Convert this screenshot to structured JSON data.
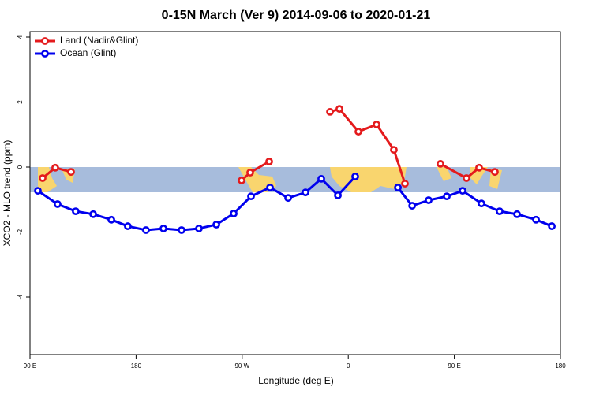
{
  "chart_data": {
    "type": "line",
    "title": "0-15N March (Ver 9)   2014-09-06 to 2020-01-21",
    "x_label": "Longitude (deg E)",
    "y_label": "XCO2 - MLO trend (ppm)",
    "xlim": [
      90,
      540
    ],
    "xticks": [
      {
        "value": 90,
        "label": "90 E"
      },
      180,
      {
        "value": 270,
        "label": "90 W"
      },
      {
        "value": 360,
        "label": "0"
      },
      {
        "value": 450,
        "label": "90 E"
      },
      {
        "value": 540,
        "label": "180"
      }
    ],
    "ylim": [
      -5.77,
      4.17
    ],
    "yticks": [
      4,
      2,
      0,
      -2,
      -4
    ],
    "legend": "top-left",
    "series": [
      {
        "name": "Land (Nadir&Glint)",
        "color": "#e41a1c",
        "x": [
          100.7,
          111.4,
          124.8,
          null,
          269.5,
          276.8,
          292.9,
          null,
          344.5,
          352.5,
          368.6,
          384.0,
          398.7,
          408.1,
          null,
          438.2,
          460.3,
          471.0,
          484.4
        ],
        "values": [
          -0.34,
          -0.02,
          -0.15,
          null,
          -0.41,
          -0.17,
          0.17,
          null,
          1.7,
          1.79,
          1.09,
          1.31,
          0.53,
          -0.51,
          null,
          0.1,
          -0.34,
          -0.02,
          -0.15
        ]
      },
      {
        "name": "Ocean (Glint)",
        "color": "#0000ee",
        "x": [
          96.7,
          113.4,
          128.8,
          143.6,
          159.0,
          173.0,
          188.4,
          203.2,
          218.6,
          233.3,
          248.1,
          262.8,
          277.5,
          293.6,
          309.0,
          323.7,
          337.1,
          351.2,
          365.9,
          null,
          402.1,
          414.2,
          428.2,
          443.6,
          457.0,
          473.0,
          488.4,
          503.2,
          519.3,
          532.7
        ],
        "values": [
          -0.73,
          -1.14,
          -1.36,
          -1.45,
          -1.62,
          -1.82,
          -1.94,
          -1.89,
          -1.94,
          -1.89,
          -1.77,
          -1.43,
          -0.9,
          -0.63,
          -0.95,
          -0.78,
          -0.36,
          -0.87,
          -0.29,
          null,
          -0.63,
          -1.19,
          -1.02,
          -0.9,
          -0.73,
          -1.12,
          -1.36,
          -1.45,
          -1.62,
          -1.82
        ]
      }
    ]
  }
}
